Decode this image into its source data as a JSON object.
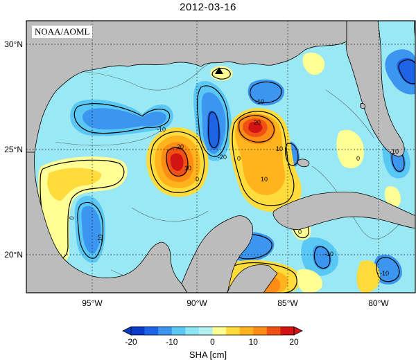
{
  "title": "2012-03-16",
  "credit": "NOAA/AOML",
  "map": {
    "lat_labels": [
      "30°N",
      "25°N",
      "20°N"
    ],
    "lon_labels": [
      "95°W",
      "90°W",
      "85°W",
      "80°W"
    ],
    "land_color": "#bcbcbc",
    "graticule": "dotted",
    "contour_labels": [
      "-10",
      "0",
      "10",
      "20",
      "-20"
    ]
  },
  "colorbar": {
    "label": "SHA [cm]",
    "ticks": [
      "-20",
      "-10",
      "0",
      "10",
      "20"
    ],
    "range": [
      -20,
      20
    ],
    "colors": [
      "#0a3cc8",
      "#1e64e6",
      "#3c96f0",
      "#5ac8f5",
      "#8ce6f5",
      "#b4f0f0",
      "#ffff96",
      "#ffdc3c",
      "#ffb41e",
      "#ff8c14",
      "#f05014",
      "#d21414"
    ],
    "extend": "both"
  }
}
